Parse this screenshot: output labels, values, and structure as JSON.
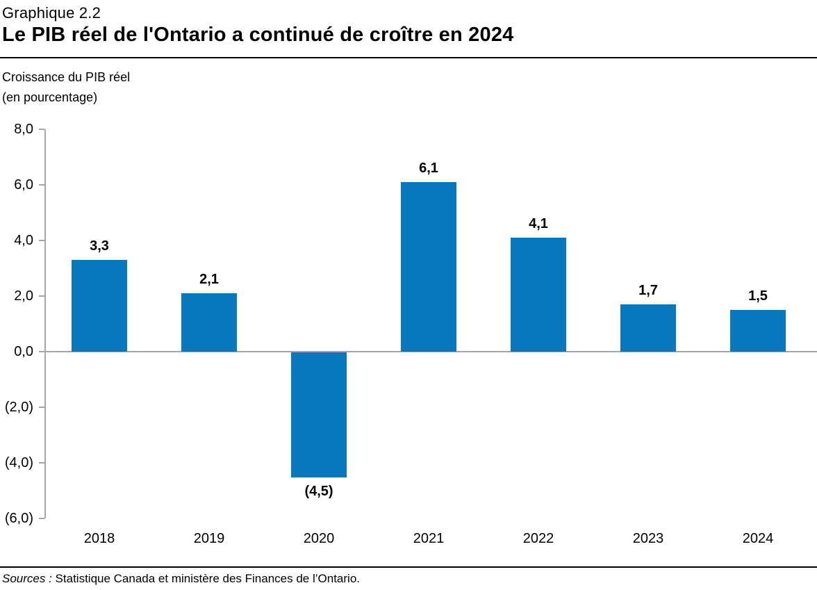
{
  "header": {
    "kicker": "Graphique 2.2",
    "title": "Le PIB réel de l'Ontario a continué de croître en 2024"
  },
  "chart_data": {
    "type": "bar",
    "title": "Le PIB réel de l'Ontario a continué de croître en 2024",
    "y_axis_title_line1": "Croissance du PIB réel",
    "y_axis_title_line2": "(en pourcentage)",
    "categories": [
      "2018",
      "2019",
      "2020",
      "2021",
      "2022",
      "2023",
      "2024"
    ],
    "values": [
      3.3,
      2.1,
      -4.5,
      6.1,
      4.1,
      1.7,
      1.5
    ],
    "value_labels": [
      "3,3",
      "2,1",
      "(4,5)",
      "6,1",
      "4,1",
      "1,7",
      "1,5"
    ],
    "ylim": [
      -6,
      8
    ],
    "yticks": [
      8,
      6,
      4,
      2,
      0,
      -2,
      -4,
      -6
    ],
    "ytick_labels": [
      "8,0",
      "6,0",
      "4,0",
      "2,0",
      "0,0",
      "(2,0)",
      "(4,0)",
      "(6,0)"
    ],
    "grid": "off",
    "legend": "none",
    "bar_color": "#0778be",
    "axis_color": "#a6a6a6",
    "text_color": "#000000"
  },
  "footer": {
    "source_label": "Sources :",
    "source_text": "Statistique Canada et ministère des Finances de l’Ontario."
  }
}
